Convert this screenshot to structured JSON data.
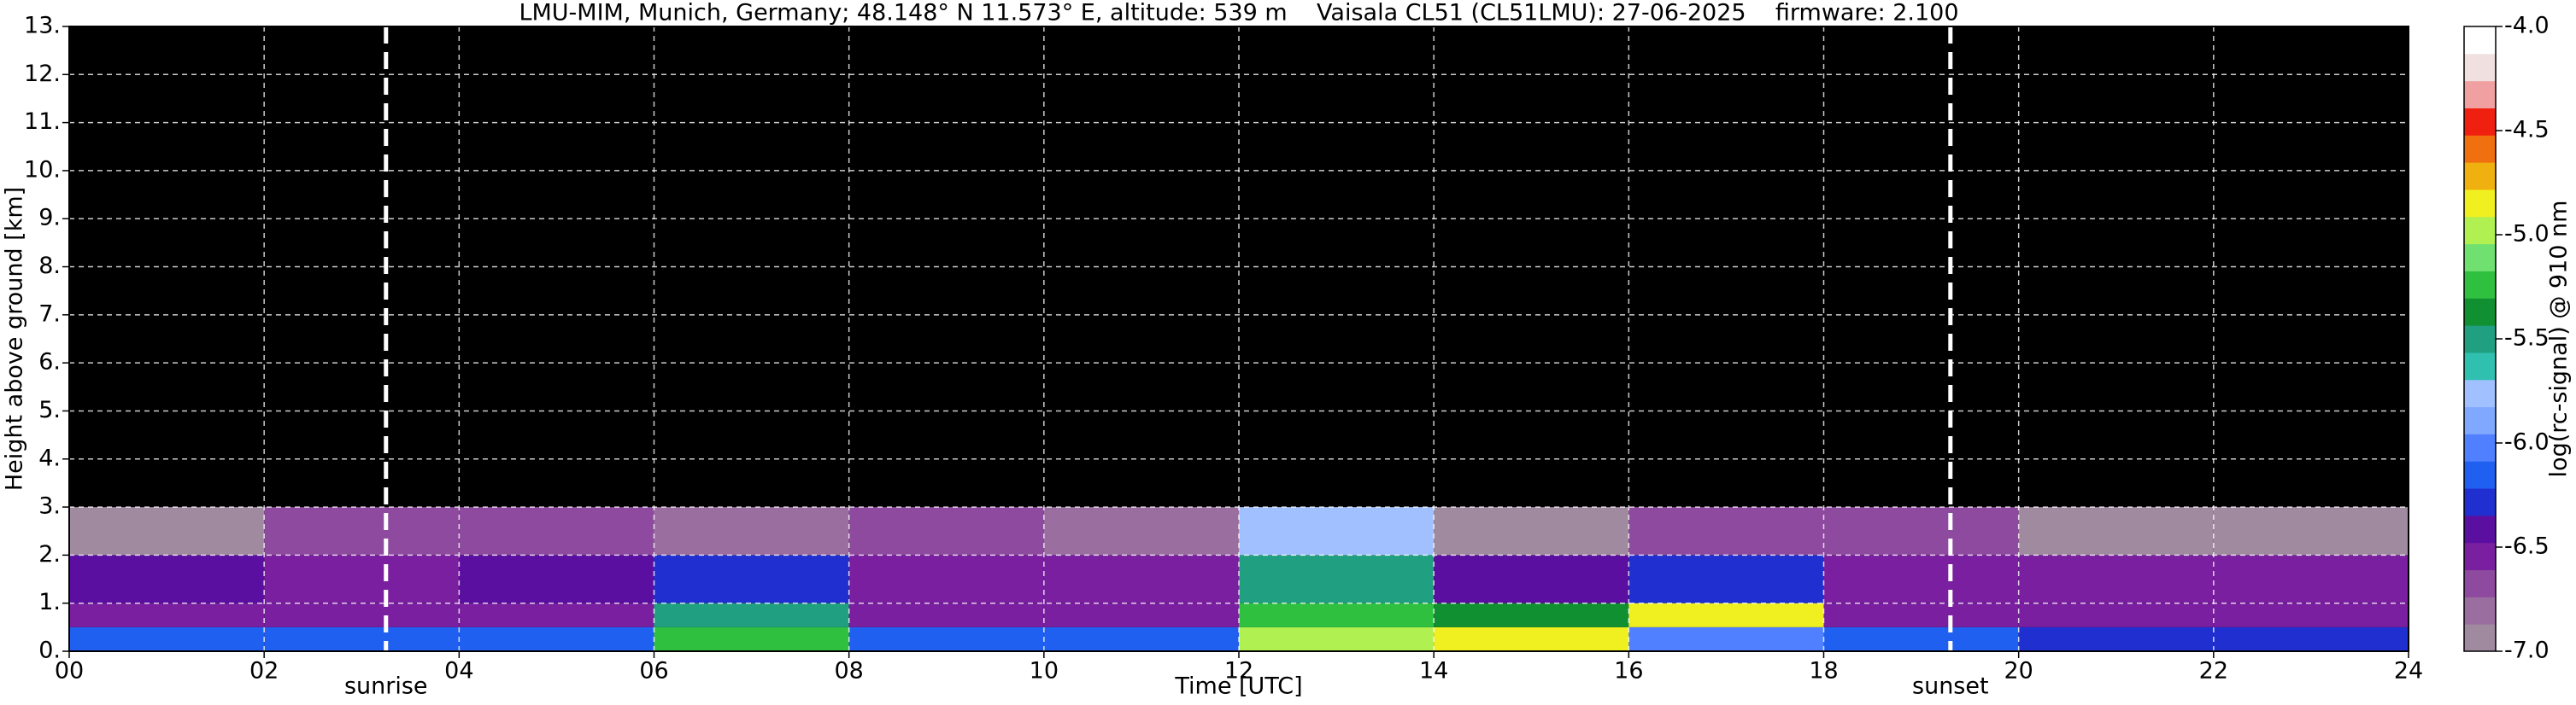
{
  "chart_data": {
    "type": "heatmap",
    "title": "LMU-MIM, Munich, Germany; 48.148° N 11.573° E, altitude: 539 m    Vaisala CL51 (CL51LMU): 27-06-2025    firmware: 2.100",
    "x_label": "Time [UTC]",
    "y_label": "Height above ground [km]",
    "x_bins": [
      0,
      2,
      4,
      6,
      8,
      10,
      12,
      14,
      16,
      18,
      20,
      22,
      24
    ],
    "y_bins": [
      0,
      0.5,
      1,
      2,
      3,
      13
    ],
    "z": [
      [
        -6.2,
        -6.2,
        -6.1,
        -5.3,
        -6.1,
        -6.2,
        -5.0,
        -4.8,
        -6.0,
        -6.2,
        -6.3,
        -6.3
      ],
      [
        -6.6,
        -6.6,
        -6.6,
        -5.5,
        -6.6,
        -6.6,
        -5.2,
        -5.4,
        -4.8,
        -6.5,
        -6.6,
        -6.6
      ],
      [
        -6.4,
        -6.5,
        -6.4,
        -6.3,
        -6.6,
        -6.5,
        -5.5,
        -6.4,
        -6.3,
        -6.6,
        -6.6,
        -6.5
      ],
      [
        -6.9,
        -6.7,
        -6.7,
        -6.8,
        -6.7,
        -6.8,
        -5.8,
        -6.9,
        -6.7,
        -6.7,
        -6.9,
        -6.9
      ],
      [
        -7.2,
        -7.2,
        -7.2,
        -7.2,
        -7.2,
        -7.2,
        -7.2,
        -7.2,
        -7.2,
        -7.2,
        -7.2,
        -7.2
      ]
    ],
    "xlim": [
      0,
      24
    ],
    "ylim": [
      0,
      13
    ],
    "xticks": [
      {
        "value": 0,
        "label": "00"
      },
      {
        "value": 2,
        "label": "02"
      },
      {
        "value": 4,
        "label": "04"
      },
      {
        "value": 6,
        "label": "06"
      },
      {
        "value": 8,
        "label": "08"
      },
      {
        "value": 10,
        "label": "10"
      },
      {
        "value": 12,
        "label": "12"
      },
      {
        "value": 14,
        "label": "14"
      },
      {
        "value": 16,
        "label": "16"
      },
      {
        "value": 18,
        "label": "18"
      },
      {
        "value": 20,
        "label": "20"
      },
      {
        "value": 22,
        "label": "22"
      },
      {
        "value": 24,
        "label": "24"
      }
    ],
    "yticks": [
      {
        "value": 0,
        "label": "0."
      },
      {
        "value": 1,
        "label": "1."
      },
      {
        "value": 2,
        "label": "2."
      },
      {
        "value": 3,
        "label": "3."
      },
      {
        "value": 4,
        "label": "4."
      },
      {
        "value": 5,
        "label": "5."
      },
      {
        "value": 6,
        "label": "6."
      },
      {
        "value": 7,
        "label": "7."
      },
      {
        "value": 8,
        "label": "8."
      },
      {
        "value": 9,
        "label": "9."
      },
      {
        "value": 10,
        "label": "10."
      },
      {
        "value": 11,
        "label": "11."
      },
      {
        "value": 12,
        "label": "12."
      },
      {
        "value": 13,
        "label": "13."
      }
    ],
    "grid": true,
    "under_color": "#000000",
    "colorbar": {
      "label": "log(rc-signal) @ 910 nm",
      "lim": [
        -7,
        -4
      ],
      "ticks": [
        {
          "value": -7,
          "label": "-7.0"
        },
        {
          "value": -6.5,
          "label": "-6.5"
        },
        {
          "value": -6,
          "label": "-6.0"
        },
        {
          "value": -5.5,
          "label": "-5.5"
        },
        {
          "value": -5,
          "label": "-5.0"
        },
        {
          "value": -4.5,
          "label": "-4.5"
        },
        {
          "value": -4,
          "label": "-4.0"
        }
      ],
      "colors": [
        "#a08aa0",
        "#9a6fa0",
        "#8e4a9e",
        "#7a1fa0",
        "#5a0fa0",
        "#2030d0",
        "#2060f0",
        "#5080ff",
        "#80a8ff",
        "#a0c0ff",
        "#30c0b0",
        "#20a080",
        "#109030",
        "#30c040",
        "#70e070",
        "#b0f050",
        "#f0f020",
        "#f0b010",
        "#f07010",
        "#f02010",
        "#f0a0a0",
        "#f0e0e0",
        "#ffffff"
      ]
    },
    "annotations": [
      {
        "text": "sunrise",
        "x": 3.25
      },
      {
        "text": "sunset",
        "x": 19.3
      }
    ]
  }
}
